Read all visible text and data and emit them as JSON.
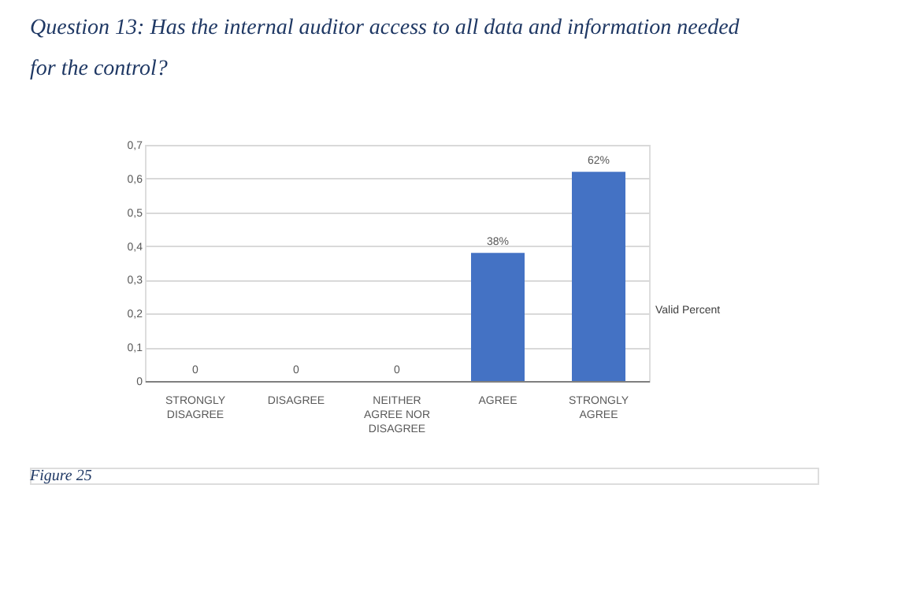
{
  "chart_data": {
    "type": "bar",
    "title": "Question 13: Has the internal auditor access to all data and information needed for the control?",
    "categories": [
      "STRONGLY DISAGREE",
      "DISAGREE",
      "NEITHER AGREE NOR DISAGREE",
      "AGREE",
      "STRONGLY AGREE"
    ],
    "series": [
      {
        "name": "Valid Percent",
        "color": "#4472c4",
        "values": [
          0,
          0,
          0,
          0.38,
          0.62
        ],
        "value_labels": [
          "0",
          "0",
          "0",
          "38%",
          "62%"
        ]
      }
    ],
    "ylim": [
      0,
      0.7
    ],
    "yticks": [
      {
        "value": 0,
        "label": "0"
      },
      {
        "value": 0.1,
        "label": "0,1"
      },
      {
        "value": 0.2,
        "label": "0,2"
      },
      {
        "value": 0.3,
        "label": "0,3"
      },
      {
        "value": 0.4,
        "label": "0,4"
      },
      {
        "value": 0.5,
        "label": "0,5"
      },
      {
        "value": 0.6,
        "label": "0,6"
      },
      {
        "value": 0.7,
        "label": "0,7"
      }
    ],
    "grid": "y",
    "legend": "right",
    "annotations": [
      "Figure 25"
    ]
  }
}
